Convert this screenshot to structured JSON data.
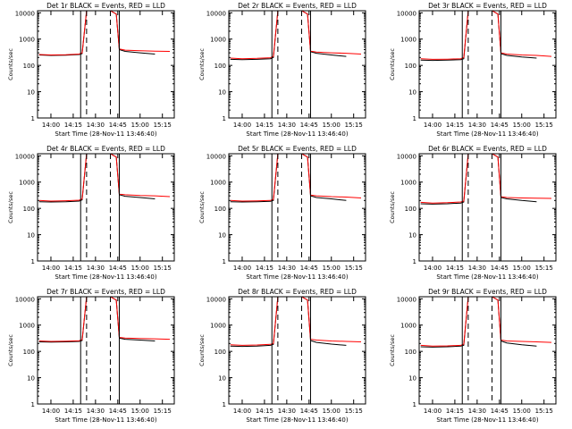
{
  "colors": {
    "background": "#ffffff",
    "axes": "#000000",
    "events": "#000000",
    "lld": "#ff0000"
  },
  "common": {
    "x_ticks": [
      "14:00",
      "14:15",
      "14:30",
      "14:45",
      "15:00",
      "15:15"
    ],
    "y_ticks": [
      "1",
      "10",
      "100",
      "1000",
      "10000"
    ],
    "ylabel": "Counts/sec",
    "xlabel": "Start Time (28-Nov-11 13:46:40)"
  },
  "chart_data": [
    {
      "type": "line",
      "title": "Det 1r  BLACK = Events, RED = LLD",
      "xlabel": "Start Time (28-Nov-11 13:46:40)",
      "ylabel": "Counts/sec",
      "y_scale": "log",
      "ylim": [
        1,
        12000
      ],
      "xlim": [
        "13:51",
        "15:23"
      ],
      "series": [
        {
          "name": "Events",
          "color": "#000000",
          "x": [
            "13:52",
            "14:00",
            "14:10",
            "14:19",
            "14:21",
            "14:24",
            "14:30",
            "14:40",
            "14:44",
            "14:46",
            "14:50",
            "15:00",
            "15:10"
          ],
          "values": [
            250,
            240,
            245,
            260,
            280,
            12000,
            12000,
            12000,
            9000,
            400,
            340,
            300,
            270
          ]
        },
        {
          "name": "LLD",
          "color": "#ff0000",
          "x": [
            "13:52",
            "14:00",
            "14:10",
            "14:19",
            "14:21",
            "14:24",
            "14:30",
            "14:40",
            "14:44",
            "14:46",
            "14:50",
            "15:00",
            "15:10",
            "15:20"
          ],
          "values": [
            260,
            250,
            255,
            270,
            300,
            12000,
            12000,
            12000,
            9000,
            420,
            380,
            360,
            350,
            340
          ]
        }
      ],
      "vertical_lines": [
        {
          "x": "14:20",
          "style": "solid"
        },
        {
          "x": "14:24",
          "style": "dashed"
        },
        {
          "x": "14:40",
          "style": "dashed"
        },
        {
          "x": "14:46",
          "style": "solid"
        }
      ]
    },
    {
      "type": "line",
      "title": "Det 2r  BLACK = Events, RED = LLD",
      "xlabel": "Start Time (28-Nov-11 13:46:40)",
      "ylabel": "Counts/sec",
      "y_scale": "log",
      "ylim": [
        1,
        12000
      ],
      "xlim": [
        "13:51",
        "15:23"
      ],
      "series": [
        {
          "name": "Events",
          "color": "#000000",
          "x": [
            "13:52",
            "14:00",
            "14:10",
            "14:19",
            "14:21",
            "14:24",
            "14:30",
            "14:40",
            "14:44",
            "14:46",
            "14:50",
            "15:00",
            "15:10"
          ],
          "values": [
            170,
            165,
            170,
            180,
            200,
            12000,
            12000,
            12000,
            9000,
            330,
            290,
            250,
            220
          ]
        },
        {
          "name": "LLD",
          "color": "#ff0000",
          "x": [
            "13:52",
            "14:00",
            "14:10",
            "14:19",
            "14:21",
            "14:24",
            "14:30",
            "14:40",
            "14:44",
            "14:46",
            "14:50",
            "15:00",
            "15:10",
            "15:20"
          ],
          "values": [
            190,
            180,
            185,
            195,
            220,
            12000,
            12000,
            12000,
            9000,
            350,
            320,
            300,
            290,
            270
          ]
        }
      ],
      "vertical_lines": [
        {
          "x": "14:20",
          "style": "solid"
        },
        {
          "x": "14:24",
          "style": "dashed"
        },
        {
          "x": "14:40",
          "style": "dashed"
        },
        {
          "x": "14:46",
          "style": "solid"
        }
      ]
    },
    {
      "type": "line",
      "title": "Det 3r  BLACK = Events, RED = LLD",
      "xlabel": "Start Time (28-Nov-11 13:46:40)",
      "ylabel": "Counts/sec",
      "y_scale": "log",
      "ylim": [
        1,
        12000
      ],
      "xlim": [
        "13:51",
        "15:23"
      ],
      "series": [
        {
          "name": "Events",
          "color": "#000000",
          "x": [
            "13:52",
            "14:00",
            "14:10",
            "14:19",
            "14:21",
            "14:24",
            "14:30",
            "14:40",
            "14:44",
            "14:46",
            "14:50",
            "15:00",
            "15:10"
          ],
          "values": [
            160,
            155,
            158,
            165,
            180,
            12000,
            12000,
            12000,
            9000,
            280,
            240,
            210,
            190
          ]
        },
        {
          "name": "LLD",
          "color": "#ff0000",
          "x": [
            "13:52",
            "14:00",
            "14:10",
            "14:19",
            "14:21",
            "14:24",
            "14:30",
            "14:40",
            "14:44",
            "14:46",
            "14:50",
            "15:00",
            "15:10",
            "15:20"
          ],
          "values": [
            180,
            170,
            172,
            180,
            200,
            12000,
            12000,
            12000,
            9000,
            300,
            270,
            250,
            240,
            220
          ]
        }
      ],
      "vertical_lines": [
        {
          "x": "14:20",
          "style": "solid"
        },
        {
          "x": "14:24",
          "style": "dashed"
        },
        {
          "x": "14:40",
          "style": "dashed"
        },
        {
          "x": "14:46",
          "style": "solid"
        }
      ]
    },
    {
      "type": "line",
      "title": "Det 4r  BLACK = Events, RED = LLD",
      "xlabel": "Start Time (28-Nov-11 13:46:40)",
      "ylabel": "Counts/sec",
      "y_scale": "log",
      "ylim": [
        1,
        12000
      ],
      "xlim": [
        "13:51",
        "15:23"
      ],
      "series": [
        {
          "name": "Events",
          "color": "#000000",
          "x": [
            "13:52",
            "14:00",
            "14:10",
            "14:19",
            "14:21",
            "14:24",
            "14:30",
            "14:40",
            "14:44",
            "14:46",
            "14:50",
            "15:00",
            "15:10"
          ],
          "values": [
            180,
            175,
            180,
            190,
            210,
            12000,
            12000,
            12000,
            9000,
            330,
            290,
            260,
            230
          ]
        },
        {
          "name": "LLD",
          "color": "#ff0000",
          "x": [
            "13:52",
            "14:00",
            "14:10",
            "14:19",
            "14:21",
            "14:24",
            "14:30",
            "14:40",
            "14:44",
            "14:46",
            "14:50",
            "15:00",
            "15:10",
            "15:20"
          ],
          "values": [
            200,
            190,
            195,
            205,
            230,
            12000,
            12000,
            12000,
            9000,
            350,
            330,
            310,
            300,
            280
          ]
        }
      ],
      "vertical_lines": [
        {
          "x": "14:20",
          "style": "solid"
        },
        {
          "x": "14:24",
          "style": "dashed"
        },
        {
          "x": "14:40",
          "style": "dashed"
        },
        {
          "x": "14:46",
          "style": "solid"
        }
      ]
    },
    {
      "type": "line",
      "title": "Det 5r  BLACK = Events, RED = LLD",
      "xlabel": "Start Time (28-Nov-11 13:46:40)",
      "ylabel": "Counts/sec",
      "y_scale": "log",
      "ylim": [
        1,
        12000
      ],
      "xlim": [
        "13:51",
        "15:23"
      ],
      "series": [
        {
          "name": "Events",
          "color": "#000000",
          "x": [
            "13:52",
            "14:00",
            "14:10",
            "14:19",
            "14:21",
            "14:24",
            "14:30",
            "14:40",
            "14:44",
            "14:46",
            "14:50",
            "15:00",
            "15:10"
          ],
          "values": [
            180,
            175,
            178,
            185,
            200,
            12000,
            12000,
            12000,
            9000,
            300,
            260,
            230,
            200
          ]
        },
        {
          "name": "LLD",
          "color": "#ff0000",
          "x": [
            "13:52",
            "14:00",
            "14:10",
            "14:19",
            "14:21",
            "14:24",
            "14:30",
            "14:40",
            "14:44",
            "14:46",
            "14:50",
            "15:00",
            "15:10",
            "15:20"
          ],
          "values": [
            200,
            190,
            192,
            200,
            220,
            12000,
            12000,
            12000,
            9000,
            320,
            300,
            280,
            270,
            250
          ]
        }
      ],
      "vertical_lines": [
        {
          "x": "14:20",
          "style": "solid"
        },
        {
          "x": "14:24",
          "style": "dashed"
        },
        {
          "x": "14:40",
          "style": "dashed"
        },
        {
          "x": "14:46",
          "style": "solid"
        }
      ]
    },
    {
      "type": "line",
      "title": "Det 6r  BLACK = Events, RED = LLD",
      "xlabel": "Start Time (28-Nov-11 13:46:40)",
      "ylabel": "Counts/sec",
      "y_scale": "log",
      "ylim": [
        1,
        12000
      ],
      "xlim": [
        "13:51",
        "15:23"
      ],
      "series": [
        {
          "name": "Events",
          "color": "#000000",
          "x": [
            "13:52",
            "14:00",
            "14:10",
            "14:19",
            "14:21",
            "14:24",
            "14:30",
            "14:40",
            "14:44",
            "14:46",
            "14:50",
            "15:00",
            "15:10"
          ],
          "values": [
            150,
            145,
            150,
            160,
            175,
            12000,
            12000,
            12000,
            9000,
            260,
            230,
            200,
            180
          ]
        },
        {
          "name": "LLD",
          "color": "#ff0000",
          "x": [
            "13:52",
            "14:00",
            "14:10",
            "14:19",
            "14:21",
            "14:24",
            "14:30",
            "14:40",
            "14:44",
            "14:46",
            "14:50",
            "15:00",
            "15:10",
            "15:20"
          ],
          "values": [
            170,
            160,
            165,
            175,
            190,
            12000,
            12000,
            12000,
            9000,
            280,
            260,
            250,
            245,
            240
          ]
        }
      ],
      "vertical_lines": [
        {
          "x": "14:20",
          "style": "solid"
        },
        {
          "x": "14:24",
          "style": "dashed"
        },
        {
          "x": "14:40",
          "style": "dashed"
        },
        {
          "x": "14:46",
          "style": "solid"
        }
      ]
    },
    {
      "type": "line",
      "title": "Det 7r  BLACK = Events, RED = LLD",
      "xlabel": "Start Time (28-Nov-11 13:46:40)",
      "ylabel": "Counts/sec",
      "y_scale": "log",
      "ylim": [
        1,
        12000
      ],
      "xlim": [
        "13:51",
        "15:23"
      ],
      "series": [
        {
          "name": "Events",
          "color": "#000000",
          "x": [
            "13:52",
            "14:00",
            "14:10",
            "14:19",
            "14:21",
            "14:24",
            "14:30",
            "14:40",
            "14:44",
            "14:46",
            "14:50",
            "15:00",
            "15:10"
          ],
          "values": [
            230,
            225,
            230,
            240,
            260,
            12000,
            12000,
            12000,
            9000,
            320,
            290,
            270,
            250
          ]
        },
        {
          "name": "LLD",
          "color": "#ff0000",
          "x": [
            "13:52",
            "14:00",
            "14:10",
            "14:19",
            "14:21",
            "14:24",
            "14:30",
            "14:40",
            "14:44",
            "14:46",
            "14:50",
            "15:00",
            "15:10",
            "15:20"
          ],
          "values": [
            250,
            240,
            245,
            255,
            280,
            12000,
            12000,
            12000,
            9000,
            340,
            320,
            310,
            300,
            290
          ]
        }
      ],
      "vertical_lines": [
        {
          "x": "14:20",
          "style": "solid"
        },
        {
          "x": "14:24",
          "style": "dashed"
        },
        {
          "x": "14:40",
          "style": "dashed"
        },
        {
          "x": "14:46",
          "style": "solid"
        }
      ]
    },
    {
      "type": "line",
      "title": "Det 8r  BLACK = Events, RED = LLD",
      "xlabel": "Start Time (28-Nov-11 13:46:40)",
      "ylabel": "Counts/sec",
      "y_scale": "log",
      "ylim": [
        1,
        12000
      ],
      "xlim": [
        "13:51",
        "15:23"
      ],
      "series": [
        {
          "name": "Events",
          "color": "#000000",
          "x": [
            "13:52",
            "14:00",
            "14:10",
            "14:19",
            "14:21",
            "14:24",
            "14:30",
            "14:40",
            "14:44",
            "14:46",
            "14:50",
            "15:00",
            "15:10"
          ],
          "values": [
            160,
            155,
            160,
            170,
            185,
            12000,
            12000,
            12000,
            9000,
            260,
            220,
            190,
            170
          ]
        },
        {
          "name": "LLD",
          "color": "#ff0000",
          "x": [
            "13:52",
            "14:00",
            "14:10",
            "14:19",
            "14:21",
            "14:24",
            "14:30",
            "14:40",
            "14:44",
            "14:46",
            "14:50",
            "15:00",
            "15:10",
            "15:20"
          ],
          "values": [
            180,
            170,
            175,
            185,
            200,
            12000,
            12000,
            12000,
            9000,
            290,
            270,
            250,
            240,
            230
          ]
        }
      ],
      "vertical_lines": [
        {
          "x": "14:20",
          "style": "solid"
        },
        {
          "x": "14:24",
          "style": "dashed"
        },
        {
          "x": "14:40",
          "style": "dashed"
        },
        {
          "x": "14:46",
          "style": "solid"
        }
      ]
    },
    {
      "type": "line",
      "title": "Det 9r  BLACK = Events, RED = LLD",
      "xlabel": "Start Time (28-Nov-11 13:46:40)",
      "ylabel": "Counts/sec",
      "y_scale": "log",
      "ylim": [
        1,
        12000
      ],
      "xlim": [
        "13:51",
        "15:23"
      ],
      "series": [
        {
          "name": "Events",
          "color": "#000000",
          "x": [
            "13:52",
            "14:00",
            "14:10",
            "14:19",
            "14:21",
            "14:24",
            "14:30",
            "14:40",
            "14:44",
            "14:46",
            "14:50",
            "15:00",
            "15:10"
          ],
          "values": [
            150,
            145,
            150,
            158,
            170,
            12000,
            12000,
            12000,
            9000,
            250,
            210,
            180,
            160
          ]
        },
        {
          "name": "LLD",
          "color": "#ff0000",
          "x": [
            "13:52",
            "14:00",
            "14:10",
            "14:19",
            "14:21",
            "14:24",
            "14:30",
            "14:40",
            "14:44",
            "14:46",
            "14:50",
            "15:00",
            "15:10",
            "15:20"
          ],
          "values": [
            170,
            160,
            162,
            170,
            190,
            12000,
            12000,
            12000,
            9000,
            270,
            250,
            240,
            230,
            220
          ]
        }
      ],
      "vertical_lines": [
        {
          "x": "14:20",
          "style": "solid"
        },
        {
          "x": "14:24",
          "style": "dashed"
        },
        {
          "x": "14:40",
          "style": "dashed"
        },
        {
          "x": "14:46",
          "style": "solid"
        }
      ]
    }
  ]
}
